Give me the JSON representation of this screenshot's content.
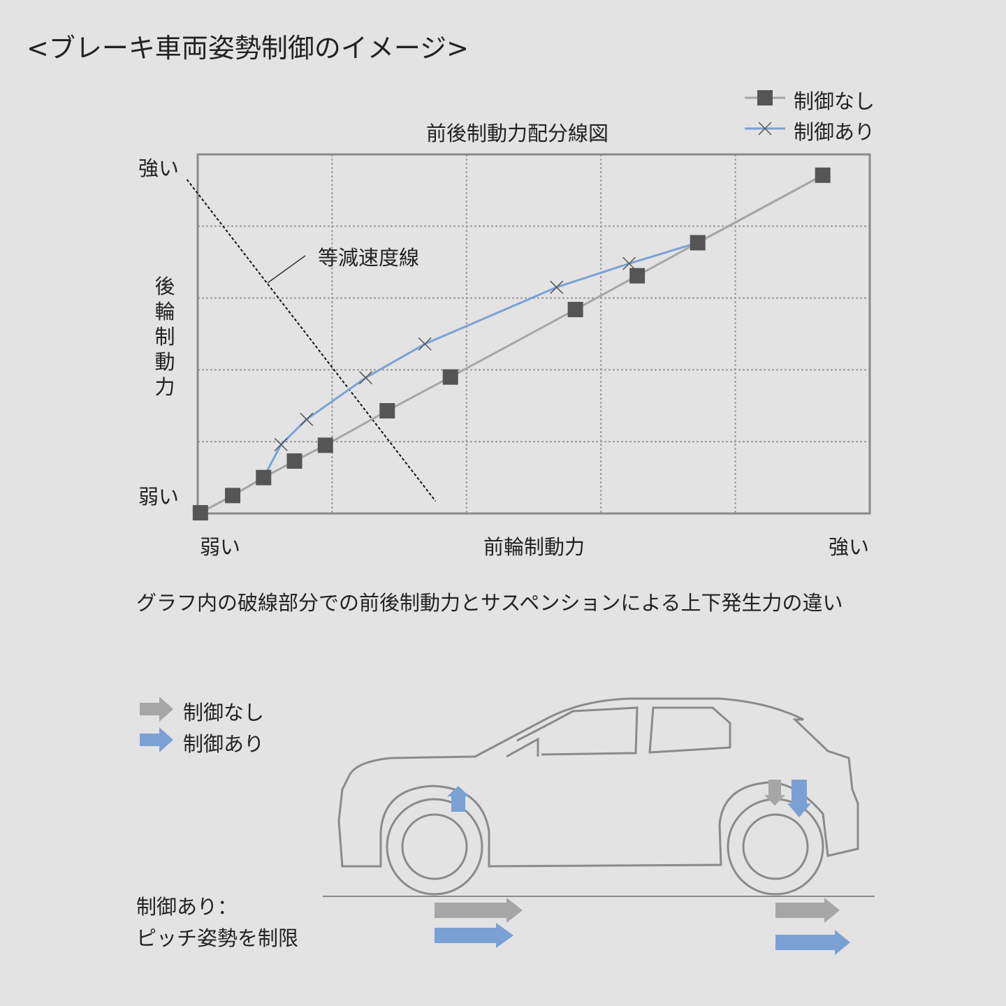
{
  "title": "<ブレーキ車両姿勢制御のイメージ>",
  "chart_data": {
    "type": "line",
    "title": "前後制動力配分線図",
    "xlabel": "前輪制動力",
    "ylabel": "後輪制動力",
    "x_tick_labels": [
      "弱い",
      "強い"
    ],
    "y_tick_labels": [
      "弱い",
      "強い"
    ],
    "xlim": [
      0,
      5
    ],
    "ylim": [
      0,
      5
    ],
    "grid": true,
    "grid_style": "dotted",
    "legend": "top-right",
    "series": [
      {
        "name": "制御なし",
        "color": "#a6a6a6",
        "marker": "square",
        "x": [
          0.02,
          0.26,
          0.49,
          0.72,
          0.95,
          1.41,
          1.88,
          2.81,
          3.27,
          3.72,
          4.65
        ],
        "y": [
          0.01,
          0.25,
          0.5,
          0.73,
          0.95,
          1.43,
          1.9,
          2.84,
          3.31,
          3.77,
          4.71
        ]
      },
      {
        "name": "制御あり",
        "color": "#7ba1d4",
        "marker": "x",
        "x": [
          0.62,
          0.81,
          1.25,
          1.69,
          2.67,
          3.21
        ],
        "y": [
          0.96,
          1.31,
          1.89,
          2.36,
          3.15,
          3.48
        ]
      }
    ],
    "annotation": {
      "text": "等減速度線",
      "line": {
        "x": [
          -0.08,
          1.77
        ],
        "y": [
          4.65,
          0.17
        ]
      }
    }
  },
  "caption": "グラフ内の破線部分での前後制動力とサスペンションによる上下発生力の違い",
  "lower_legend": [
    {
      "label": "制御なし",
      "color": "#a6a6a6"
    },
    {
      "label": "制御あり",
      "color": "#7ba1d4"
    }
  ],
  "note": [
    "制御あり：",
    "ピッチ姿勢を制限"
  ]
}
